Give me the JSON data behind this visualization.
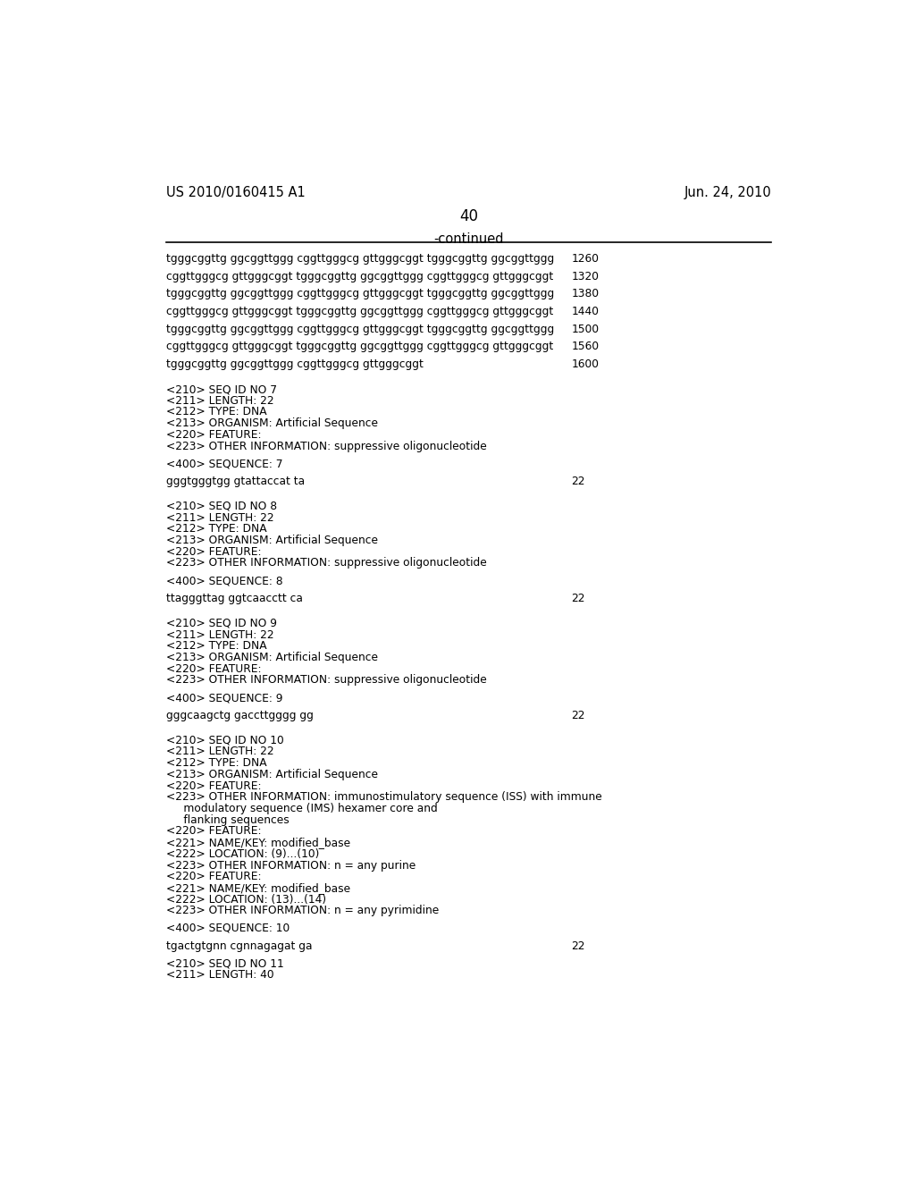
{
  "background_color": "#ffffff",
  "header_left": "US 2010/0160415 A1",
  "header_right": "Jun. 24, 2010",
  "page_number": "40",
  "continued_label": "-continued",
  "lines": [
    {
      "type": "sequence",
      "text": "tgggcggttg ggcggttggg cggttgggcg gttgggcggt tgggcggttg ggcggttggg",
      "num": "1260"
    },
    {
      "type": "blank_small"
    },
    {
      "type": "sequence",
      "text": "cggttgggcg gttgggcggt tgggcggttg ggcggttggg cggttgggcg gttgggcggt",
      "num": "1320"
    },
    {
      "type": "blank_small"
    },
    {
      "type": "sequence",
      "text": "tgggcggttg ggcggttggg cggttgggcg gttgggcggt tgggcggttg ggcggttggg",
      "num": "1380"
    },
    {
      "type": "blank_small"
    },
    {
      "type": "sequence",
      "text": "cggttgggcg gttgggcggt tgggcggttg ggcggttggg cggttgggcg gttgggcggt",
      "num": "1440"
    },
    {
      "type": "blank_small"
    },
    {
      "type": "sequence",
      "text": "tgggcggttg ggcggttggg cggttgggcg gttgggcggt tgggcggttg ggcggttggg",
      "num": "1500"
    },
    {
      "type": "blank_small"
    },
    {
      "type": "sequence",
      "text": "cggttgggcg gttgggcggt tgggcggttg ggcggttggg cggttgggcg gttgggcggt",
      "num": "1560"
    },
    {
      "type": "blank_small"
    },
    {
      "type": "sequence",
      "text": "tgggcggttg ggcggttggg cggttgggcg gttgggcggt",
      "num": "1600"
    },
    {
      "type": "blank_large"
    },
    {
      "type": "meta",
      "text": "<210> SEQ ID NO 7"
    },
    {
      "type": "meta",
      "text": "<211> LENGTH: 22"
    },
    {
      "type": "meta",
      "text": "<212> TYPE: DNA"
    },
    {
      "type": "meta",
      "text": "<213> ORGANISM: Artificial Sequence"
    },
    {
      "type": "meta",
      "text": "<220> FEATURE:"
    },
    {
      "type": "meta",
      "text": "<223> OTHER INFORMATION: suppressive oligonucleotide"
    },
    {
      "type": "blank_small"
    },
    {
      "type": "meta",
      "text": "<400> SEQUENCE: 7"
    },
    {
      "type": "blank_small"
    },
    {
      "type": "sequence",
      "text": "gggtgggtgg gtattaccat ta",
      "num": "22"
    },
    {
      "type": "blank_large"
    },
    {
      "type": "meta",
      "text": "<210> SEQ ID NO 8"
    },
    {
      "type": "meta",
      "text": "<211> LENGTH: 22"
    },
    {
      "type": "meta",
      "text": "<212> TYPE: DNA"
    },
    {
      "type": "meta",
      "text": "<213> ORGANISM: Artificial Sequence"
    },
    {
      "type": "meta",
      "text": "<220> FEATURE:"
    },
    {
      "type": "meta",
      "text": "<223> OTHER INFORMATION: suppressive oligonucleotide"
    },
    {
      "type": "blank_small"
    },
    {
      "type": "meta",
      "text": "<400> SEQUENCE: 8"
    },
    {
      "type": "blank_small"
    },
    {
      "type": "sequence",
      "text": "ttagggttag ggtcaacctt ca",
      "num": "22"
    },
    {
      "type": "blank_large"
    },
    {
      "type": "meta",
      "text": "<210> SEQ ID NO 9"
    },
    {
      "type": "meta",
      "text": "<211> LENGTH: 22"
    },
    {
      "type": "meta",
      "text": "<212> TYPE: DNA"
    },
    {
      "type": "meta",
      "text": "<213> ORGANISM: Artificial Sequence"
    },
    {
      "type": "meta",
      "text": "<220> FEATURE:"
    },
    {
      "type": "meta",
      "text": "<223> OTHER INFORMATION: suppressive oligonucleotide"
    },
    {
      "type": "blank_small"
    },
    {
      "type": "meta",
      "text": "<400> SEQUENCE: 9"
    },
    {
      "type": "blank_small"
    },
    {
      "type": "sequence",
      "text": "gggcaagctg gaccttgggg gg",
      "num": "22"
    },
    {
      "type": "blank_large"
    },
    {
      "type": "meta",
      "text": "<210> SEQ ID NO 10"
    },
    {
      "type": "meta",
      "text": "<211> LENGTH: 22"
    },
    {
      "type": "meta",
      "text": "<212> TYPE: DNA"
    },
    {
      "type": "meta",
      "text": "<213> ORGANISM: Artificial Sequence"
    },
    {
      "type": "meta",
      "text": "<220> FEATURE:"
    },
    {
      "type": "meta",
      "text": "<223> OTHER INFORMATION: immunostimulatory sequence (ISS) with immune"
    },
    {
      "type": "meta",
      "text": "     modulatory sequence (IMS) hexamer core and"
    },
    {
      "type": "meta",
      "text": "     flanking sequences"
    },
    {
      "type": "meta",
      "text": "<220> FEATURE:"
    },
    {
      "type": "meta",
      "text": "<221> NAME/KEY: modified_base"
    },
    {
      "type": "meta",
      "text": "<222> LOCATION: (9)...(10)"
    },
    {
      "type": "meta",
      "text": "<223> OTHER INFORMATION: n = any purine"
    },
    {
      "type": "meta",
      "text": "<220> FEATURE:"
    },
    {
      "type": "meta",
      "text": "<221> NAME/KEY: modified_base"
    },
    {
      "type": "meta",
      "text": "<222> LOCATION: (13)...(14)"
    },
    {
      "type": "meta",
      "text": "<223> OTHER INFORMATION: n = any pyrimidine"
    },
    {
      "type": "blank_small"
    },
    {
      "type": "meta",
      "text": "<400> SEQUENCE: 10"
    },
    {
      "type": "blank_small"
    },
    {
      "type": "sequence",
      "text": "tgactgtgnn cgnnagagat ga",
      "num": "22"
    },
    {
      "type": "blank_small"
    },
    {
      "type": "meta",
      "text": "<210> SEQ ID NO 11"
    },
    {
      "type": "meta",
      "text": "<211> LENGTH: 40"
    }
  ]
}
